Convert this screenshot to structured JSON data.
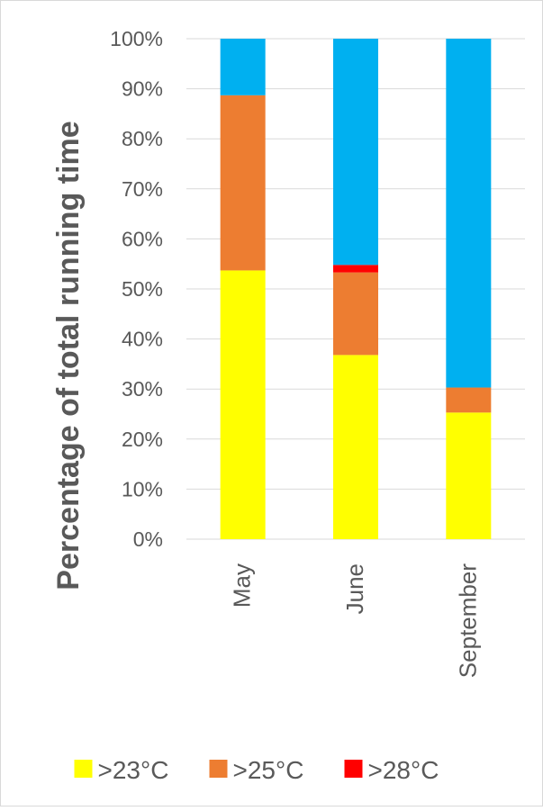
{
  "chart_data": {
    "type": "bar",
    "stacked": true,
    "title": "",
    "xlabel": "",
    "ylabel": "Percentage of total running time",
    "ylim": [
      0,
      100
    ],
    "yticks": [
      "0%",
      "10%",
      "20%",
      "30%",
      "40%",
      "50%",
      "60%",
      "70%",
      "80%",
      "90%",
      "100%"
    ],
    "categories": [
      "May",
      "June",
      "September"
    ],
    "series": [
      {
        "name": ">23°C",
        "color": "#FFFF00",
        "values": [
          53.7,
          36.8,
          25.3
        ]
      },
      {
        "name": ">25°C",
        "color": "#ED7D31",
        "values": [
          35.0,
          16.5,
          5.0
        ]
      },
      {
        "name": ">28°C",
        "color": "#FF0000",
        "values": [
          0.0,
          1.5,
          0.0
        ]
      },
      {
        "color": "#00B0F0",
        "values": [
          11.3,
          45.2,
          69.7
        ]
      }
    ],
    "grid": true,
    "legend_position": "bottom"
  }
}
